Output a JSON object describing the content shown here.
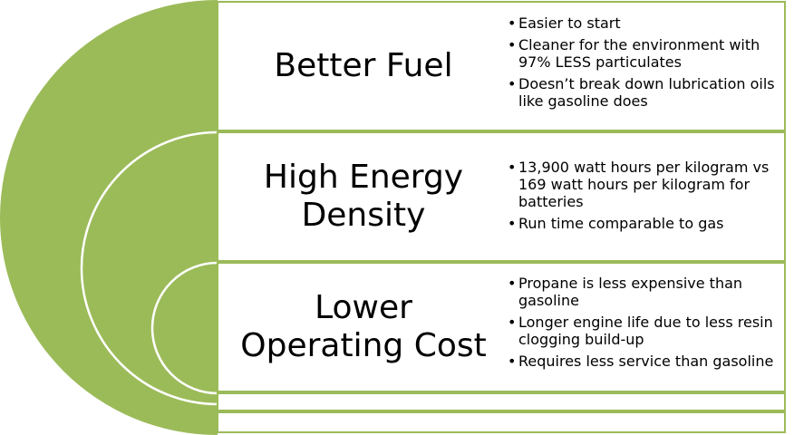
{
  "diagram": {
    "colors": {
      "arc_fill": "#9bbb59",
      "row_border": "#9bbb59",
      "circle_line": "#ffffff"
    },
    "rows": [
      {
        "title_lines": [
          "Better Fuel"
        ],
        "bullets": [
          "Easier to start",
          "Cleaner for the environment with 97% LESS particulates",
          "Doesn’t break down lubrication oils like gasoline does"
        ]
      },
      {
        "title_lines": [
          "High Energy",
          "Density"
        ],
        "bullets": [
          "13,900 watt hours per kilogram vs 169 watt hours per kilogram for batteries",
          "Run time comparable to gas"
        ]
      },
      {
        "title_lines": [
          "Lower",
          "Operating Cost"
        ],
        "bullets": [
          "Propane is less expensive than gasoline",
          "Longer engine life due to less resin clogging build-up",
          "Requires less service than gasoline"
        ]
      }
    ]
  }
}
